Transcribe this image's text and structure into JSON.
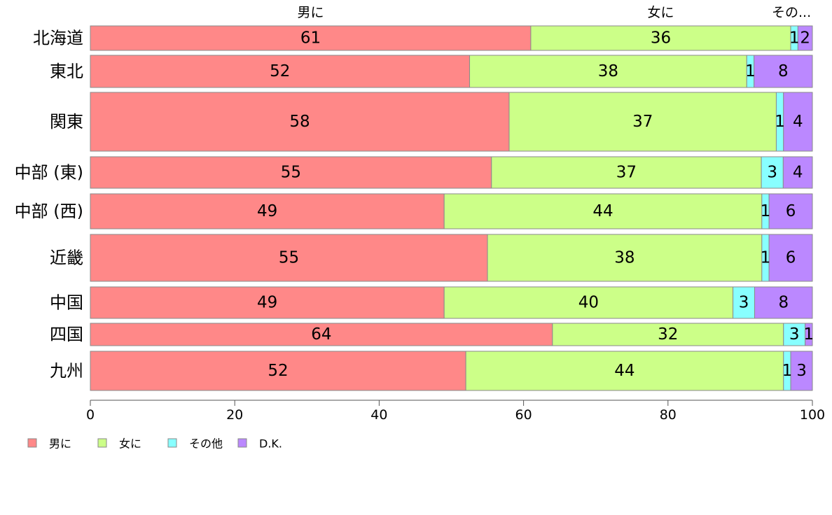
{
  "chart_data": {
    "type": "bar",
    "orientation": "horizontal",
    "stacked": true,
    "variable_width": true,
    "categories": [
      "北海道",
      "東北",
      "関東",
      "中部 (東)",
      "中部 (西)",
      "近畿",
      "中国",
      "四国",
      "九州"
    ],
    "series": [
      {
        "name": "男に",
        "color": "#FF8888",
        "values": [
          61,
          52,
          58,
          55,
          49,
          55,
          49,
          64,
          52
        ]
      },
      {
        "name": "女に",
        "color": "#CCFF88",
        "values": [
          36,
          38,
          37,
          37,
          44,
          38,
          40,
          32,
          44
        ]
      },
      {
        "name": "その他",
        "color": "#88FFFF",
        "values": [
          1,
          1,
          1,
          3,
          1,
          1,
          3,
          3,
          1
        ]
      },
      {
        "name": "D.K.",
        "color": "#BB88FF",
        "values": [
          2,
          8,
          4,
          4,
          6,
          6,
          8,
          1,
          3
        ]
      }
    ],
    "top_labels": [
      "男に",
      "女に",
      "その..."
    ],
    "xlim": [
      0,
      100
    ],
    "xticks": [
      "0",
      "20",
      "40",
      "60",
      "80",
      "100"
    ],
    "legend": {
      "position": "bottom-left",
      "items": [
        "男に",
        "女に",
        "その他",
        "D.K."
      ]
    },
    "grid": false
  }
}
